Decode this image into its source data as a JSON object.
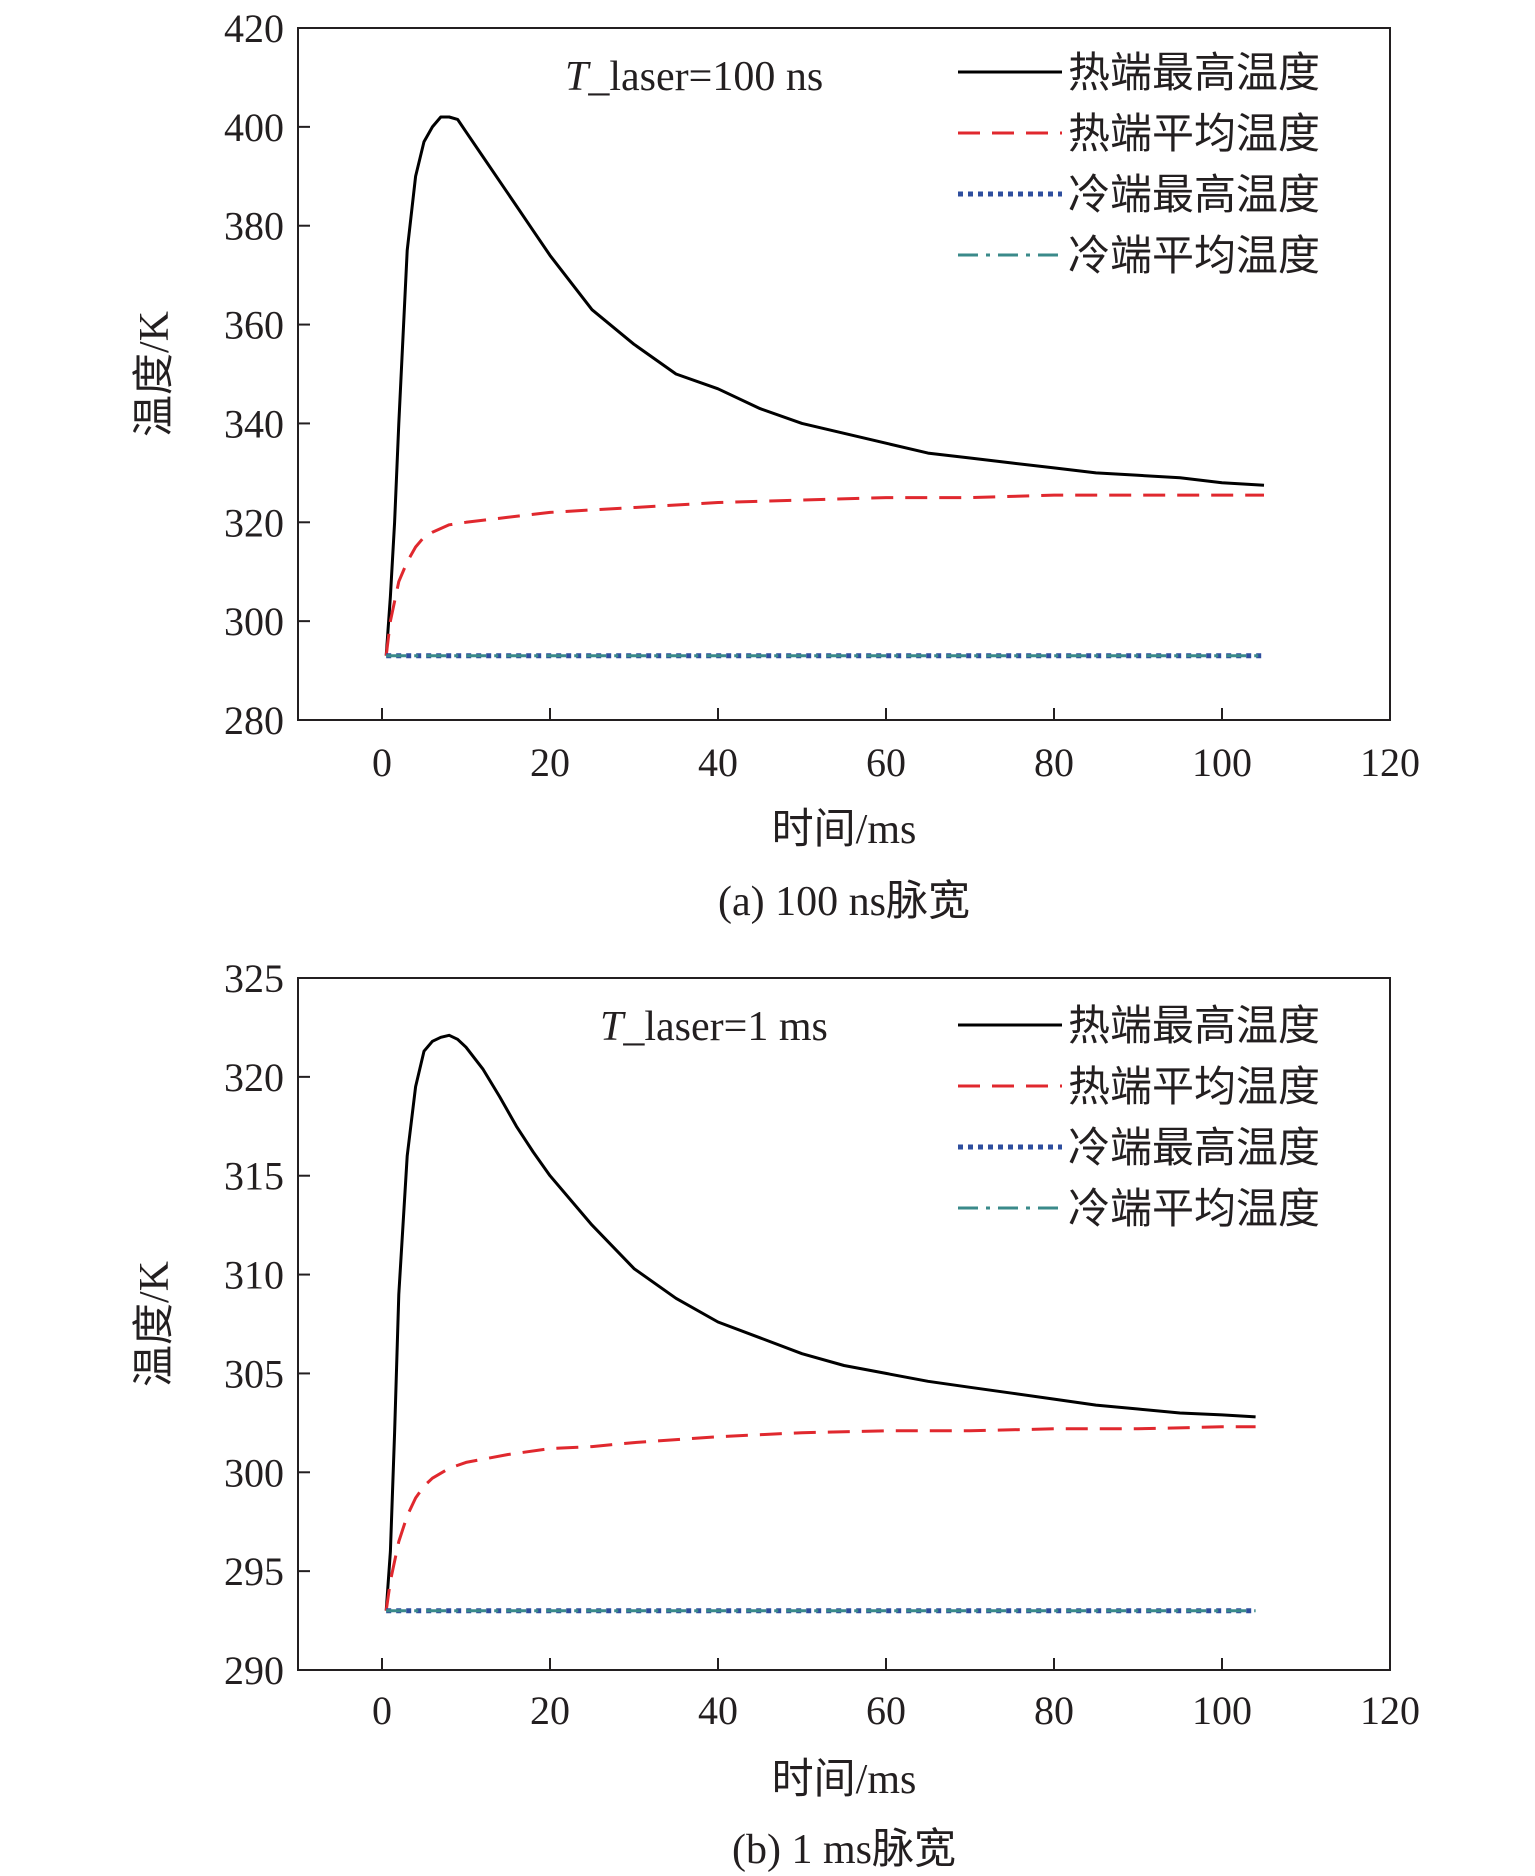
{
  "chart_data": [
    {
      "type": "line",
      "annotation": {
        "prefix": "T",
        "suffix": "_laser=100 ns"
      },
      "caption": "(a) 100 ns脉宽",
      "xlabel": "时间/ms",
      "ylabel": "温度/K",
      "xlim": [
        -10,
        120
      ],
      "ylim": [
        280,
        420
      ],
      "xticks": [
        0,
        20,
        40,
        60,
        80,
        100,
        120
      ],
      "yticks": [
        280,
        300,
        320,
        340,
        360,
        380,
        400,
        420
      ],
      "legend_position": "top-right",
      "grid": false,
      "series": [
        {
          "name": "热端最高温度",
          "color": "#000000",
          "style": "solid",
          "x": [
            0.5,
            1.0,
            1.5,
            2.0,
            3.0,
            4.0,
            5.0,
            6.0,
            7.0,
            8.0,
            9.0,
            10.0,
            12.0,
            14.0,
            16.0,
            18.0,
            20.0,
            25.0,
            30.0,
            35.0,
            40.0,
            45.0,
            50.0,
            55.0,
            60.0,
            65.0,
            70.0,
            75.0,
            80.0,
            85.0,
            90.0,
            95.0,
            100.0,
            105.0
          ],
          "y": [
            293,
            305,
            320,
            340,
            375,
            390,
            397,
            400,
            402,
            402,
            401.5,
            399,
            394,
            389,
            384,
            379,
            374,
            363,
            356,
            350,
            347,
            343,
            340,
            338,
            336,
            334,
            333,
            332,
            331,
            330,
            329.5,
            329,
            328,
            327.5
          ]
        },
        {
          "name": "热端平均温度",
          "color": "#e0282e",
          "style": "dashed",
          "x": [
            0.5,
            1.0,
            2.0,
            3.0,
            4.0,
            5.0,
            6.0,
            8.0,
            10.0,
            15.0,
            20.0,
            25.0,
            30.0,
            40.0,
            50.0,
            60.0,
            70.0,
            80.0,
            90.0,
            100.0,
            105.0
          ],
          "y": [
            293,
            300,
            308,
            312,
            315,
            317,
            318,
            319.5,
            320,
            321,
            322,
            322.5,
            323,
            324,
            324.5,
            325,
            325,
            325.5,
            325.5,
            325.5,
            325.5
          ]
        },
        {
          "name": "冷端最高温度",
          "color": "#2e4e9e",
          "style": "dotted",
          "x": [
            0.5,
            105.0
          ],
          "y": [
            293,
            293
          ]
        },
        {
          "name": "冷端平均温度",
          "color": "#3a8a8a",
          "style": "dashdot",
          "x": [
            0.5,
            105.0
          ],
          "y": [
            293,
            293
          ]
        }
      ]
    },
    {
      "type": "line",
      "annotation": {
        "prefix": "T",
        "suffix": "_laser=1 ms"
      },
      "caption": "(b) 1 ms脉宽",
      "xlabel": "时间/ms",
      "ylabel": "温度/K",
      "xlim": [
        -10,
        120
      ],
      "ylim": [
        290,
        325
      ],
      "xticks": [
        0,
        20,
        40,
        60,
        80,
        100,
        120
      ],
      "yticks": [
        290,
        295,
        300,
        305,
        310,
        315,
        320,
        325
      ],
      "legend_position": "top-right",
      "grid": false,
      "series": [
        {
          "name": "热端最高温度",
          "color": "#000000",
          "style": "solid",
          "x": [
            0.5,
            1.0,
            1.5,
            2.0,
            3.0,
            4.0,
            5.0,
            6.0,
            7.0,
            8.0,
            9.0,
            10.0,
            12.0,
            14.0,
            16.0,
            18.0,
            20.0,
            25.0,
            30.0,
            35.0,
            40.0,
            45.0,
            50.0,
            55.0,
            60.0,
            65.0,
            70.0,
            75.0,
            80.0,
            85.0,
            90.0,
            95.0,
            100.0,
            104.0
          ],
          "y": [
            293,
            296,
            302,
            309,
            316,
            319.5,
            321.3,
            321.8,
            322,
            322.1,
            321.9,
            321.5,
            320.4,
            319,
            317.5,
            316.2,
            315,
            312.5,
            310.3,
            308.8,
            307.6,
            306.8,
            306,
            305.4,
            305,
            304.6,
            304.3,
            304,
            303.7,
            303.4,
            303.2,
            303,
            302.9,
            302.8
          ]
        },
        {
          "name": "热端平均温度",
          "color": "#e0282e",
          "style": "dashed",
          "x": [
            0.5,
            1.0,
            2.0,
            3.0,
            4.0,
            5.0,
            6.0,
            8.0,
            10.0,
            15.0,
            20.0,
            25.0,
            30.0,
            40.0,
            50.0,
            60.0,
            70.0,
            80.0,
            90.0,
            100.0,
            104.0
          ],
          "y": [
            293,
            294.5,
            296.5,
            297.8,
            298.7,
            299.3,
            299.7,
            300.2,
            300.5,
            300.9,
            301.2,
            301.3,
            301.5,
            301.8,
            302,
            302.1,
            302.1,
            302.2,
            302.2,
            302.3,
            302.3
          ]
        },
        {
          "name": "冷端最高温度",
          "color": "#2e4e9e",
          "style": "dotted",
          "x": [
            0.5,
            104.0
          ],
          "y": [
            293,
            293
          ]
        },
        {
          "name": "冷端平均温度",
          "color": "#3a8a8a",
          "style": "dashdot",
          "x": [
            0.5,
            104.0
          ],
          "y": [
            293,
            293
          ]
        }
      ]
    }
  ]
}
